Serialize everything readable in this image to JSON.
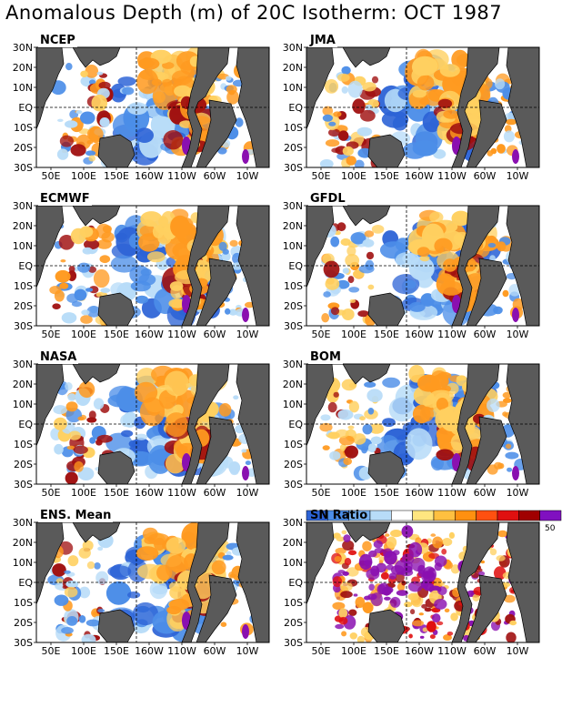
{
  "title": "Anomalous Depth (m) of 20C Isotherm: OCT 1987",
  "lat_ticks": [
    "30N",
    "20N",
    "10N",
    "EQ",
    "10S",
    "20S",
    "30S"
  ],
  "lon_ticks": [
    "50E",
    "100E",
    "150E",
    "160W",
    "110W",
    "60W",
    "10W"
  ],
  "panels": [
    {
      "id": "ncep",
      "label": "NCEP"
    },
    {
      "id": "jma",
      "label": "JMA"
    },
    {
      "id": "ecmwf",
      "label": "ECMWF"
    },
    {
      "id": "gfdl",
      "label": "GFDL"
    },
    {
      "id": "nasa",
      "label": "NASA"
    },
    {
      "id": "bom",
      "label": "BOM"
    },
    {
      "id": "ens",
      "label": "ENS. Mean"
    },
    {
      "id": "sn",
      "label": "SN Ratio"
    }
  ],
  "colorbar": {
    "max_label": "50",
    "colors": [
      "#2c63d6",
      "#4c8ee8",
      "#7ab4f2",
      "#b8dcf8",
      "#ffffff",
      "#ffe680",
      "#ffc040",
      "#ff9010",
      "#ff5010",
      "#e01010",
      "#a00000",
      "#8010c0"
    ]
  },
  "colors": {
    "land": "#5a5a5a",
    "deep_positive": "#a01010",
    "positive": "#ff9a20",
    "weak_positive": "#ffd060",
    "weak_negative": "#b8dcf8",
    "negative": "#4c8ee8",
    "deep_negative": "#2c63d6",
    "extreme": "#8a10b0"
  }
}
